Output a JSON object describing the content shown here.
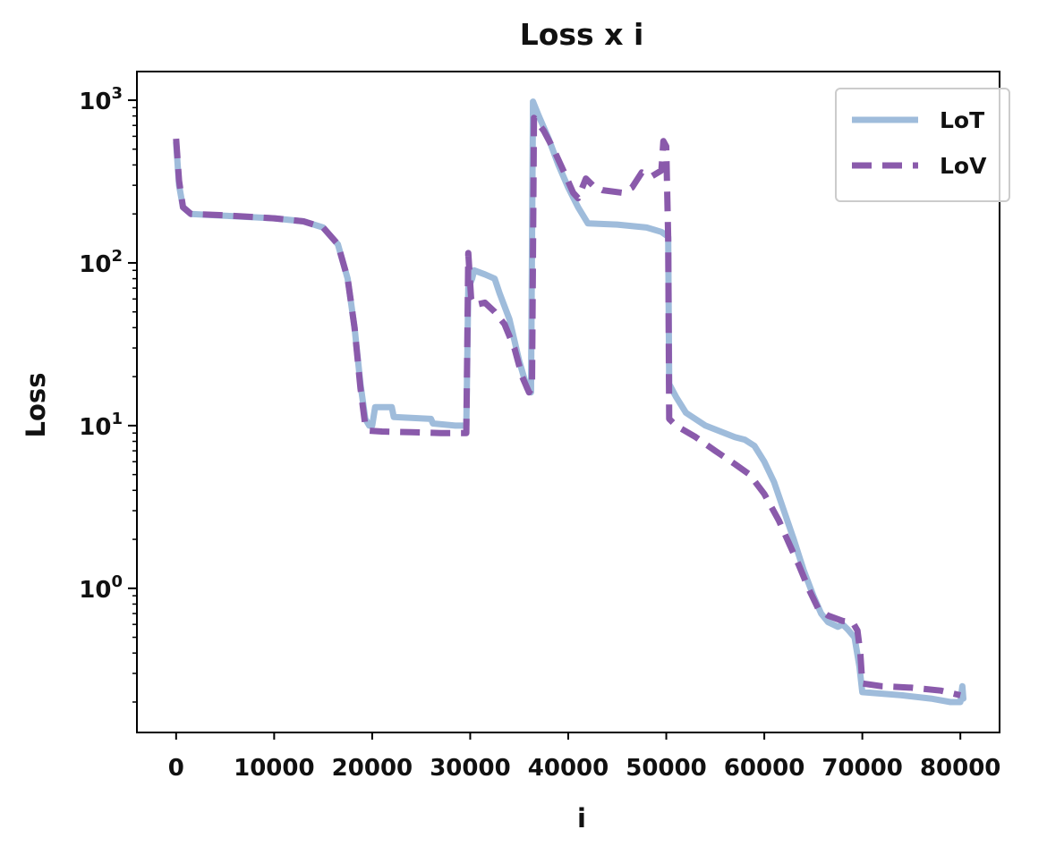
{
  "chart_data": {
    "type": "line",
    "title": "Loss x i",
    "xlabel": "i",
    "ylabel": "Loss",
    "xlim": [
      -4000,
      84000
    ],
    "ylim": [
      0.13,
      1500
    ],
    "yscale": "log",
    "grid": false,
    "legend_position": "top-right",
    "x_ticks": [
      0,
      10000,
      20000,
      30000,
      40000,
      50000,
      60000,
      70000,
      80000
    ],
    "x_tick_labels": [
      "0",
      "10000",
      "20000",
      "30000",
      "40000",
      "50000",
      "60000",
      "70000",
      "80000"
    ],
    "y_ticks": [
      {
        "value": 1,
        "base": "10",
        "exp": "0"
      },
      {
        "value": 10,
        "base": "10",
        "exp": "1"
      },
      {
        "value": 100,
        "base": "10",
        "exp": "2"
      },
      {
        "value": 1000,
        "base": "10",
        "exp": "3"
      }
    ],
    "series": [
      {
        "name": "LoT",
        "color": "#9fbcdb",
        "style": "solid",
        "points": [
          [
            0,
            550
          ],
          [
            300,
            300
          ],
          [
            700,
            220
          ],
          [
            1500,
            200
          ],
          [
            5000,
            195
          ],
          [
            10000,
            188
          ],
          [
            13000,
            180
          ],
          [
            15000,
            165
          ],
          [
            16500,
            130
          ],
          [
            17500,
            80
          ],
          [
            18200,
            40
          ],
          [
            18800,
            18
          ],
          [
            19300,
            11
          ],
          [
            19700,
            10
          ],
          [
            20000,
            10
          ],
          [
            20300,
            13
          ],
          [
            22000,
            13
          ],
          [
            22200,
            11.3
          ],
          [
            26000,
            11
          ],
          [
            26200,
            10.3
          ],
          [
            28500,
            10
          ],
          [
            29600,
            10
          ],
          [
            29800,
            70
          ],
          [
            30200,
            80
          ],
          [
            30400,
            90
          ],
          [
            31500,
            85
          ],
          [
            32500,
            80
          ],
          [
            33000,
            65
          ],
          [
            34000,
            45
          ],
          [
            35000,
            25
          ],
          [
            35800,
            17
          ],
          [
            36200,
            16
          ],
          [
            36400,
            980
          ],
          [
            37000,
            800
          ],
          [
            38000,
            580
          ],
          [
            39000,
            400
          ],
          [
            40000,
            290
          ],
          [
            41000,
            220
          ],
          [
            42000,
            175
          ],
          [
            45000,
            172
          ],
          [
            48000,
            165
          ],
          [
            49500,
            155
          ],
          [
            50200,
            145
          ],
          [
            50300,
            18
          ],
          [
            51000,
            15
          ],
          [
            52000,
            12
          ],
          [
            54000,
            10
          ],
          [
            57000,
            8.5
          ],
          [
            58000,
            8.2
          ],
          [
            59000,
            7.5
          ],
          [
            60000,
            6
          ],
          [
            61000,
            4.5
          ],
          [
            62000,
            3
          ],
          [
            63000,
            2
          ],
          [
            64000,
            1.3
          ],
          [
            65000,
            0.9
          ],
          [
            65800,
            0.7
          ],
          [
            66500,
            0.62
          ],
          [
            67500,
            0.58
          ],
          [
            68000,
            0.6
          ],
          [
            68500,
            0.56
          ],
          [
            69200,
            0.5
          ],
          [
            69700,
            0.33
          ],
          [
            70000,
            0.23
          ],
          [
            74000,
            0.22
          ],
          [
            77000,
            0.21
          ],
          [
            79000,
            0.2
          ],
          [
            80000,
            0.2
          ],
          [
            80200,
            0.25
          ],
          [
            80300,
            0.21
          ]
        ]
      },
      {
        "name": "LoV",
        "color": "#8a5aab",
        "style": "dashed",
        "points": [
          [
            0,
            580
          ],
          [
            300,
            320
          ],
          [
            700,
            220
          ],
          [
            1500,
            200
          ],
          [
            5000,
            196
          ],
          [
            10000,
            188
          ],
          [
            13000,
            180
          ],
          [
            15000,
            165
          ],
          [
            16500,
            130
          ],
          [
            17500,
            80
          ],
          [
            18200,
            40
          ],
          [
            18800,
            17
          ],
          [
            19300,
            10
          ],
          [
            19700,
            9.3
          ],
          [
            21000,
            9.2
          ],
          [
            24000,
            9.1
          ],
          [
            27000,
            9
          ],
          [
            29600,
            9
          ],
          [
            29800,
            115
          ],
          [
            30100,
            60
          ],
          [
            30400,
            55
          ],
          [
            31500,
            57
          ],
          [
            32500,
            50
          ],
          [
            33500,
            42
          ],
          [
            34500,
            30
          ],
          [
            35300,
            20
          ],
          [
            36000,
            16
          ],
          [
            36300,
            17
          ],
          [
            36500,
            780
          ],
          [
            37500,
            650
          ],
          [
            38500,
            500
          ],
          [
            39500,
            370
          ],
          [
            40500,
            270
          ],
          [
            41000,
            250
          ],
          [
            41800,
            330
          ],
          [
            42500,
            300
          ],
          [
            43500,
            280
          ],
          [
            45500,
            270
          ],
          [
            46500,
            290
          ],
          [
            47500,
            360
          ],
          [
            48500,
            340
          ],
          [
            49500,
            370
          ],
          [
            49700,
            560
          ],
          [
            50000,
            520
          ],
          [
            50200,
            140
          ],
          [
            50300,
            11
          ],
          [
            51000,
            10
          ],
          [
            53000,
            8.5
          ],
          [
            55000,
            7
          ],
          [
            57000,
            5.8
          ],
          [
            58500,
            5
          ],
          [
            60000,
            3.8
          ],
          [
            61500,
            2.6
          ],
          [
            62500,
            1.9
          ],
          [
            63500,
            1.4
          ],
          [
            64500,
            1.0
          ],
          [
            65500,
            0.75
          ],
          [
            66500,
            0.68
          ],
          [
            68000,
            0.63
          ],
          [
            69000,
            0.62
          ],
          [
            69500,
            0.55
          ],
          [
            69800,
            0.4
          ],
          [
            70000,
            0.26
          ],
          [
            72000,
            0.25
          ],
          [
            75000,
            0.245
          ],
          [
            78000,
            0.235
          ],
          [
            80000,
            0.22
          ]
        ]
      }
    ]
  }
}
